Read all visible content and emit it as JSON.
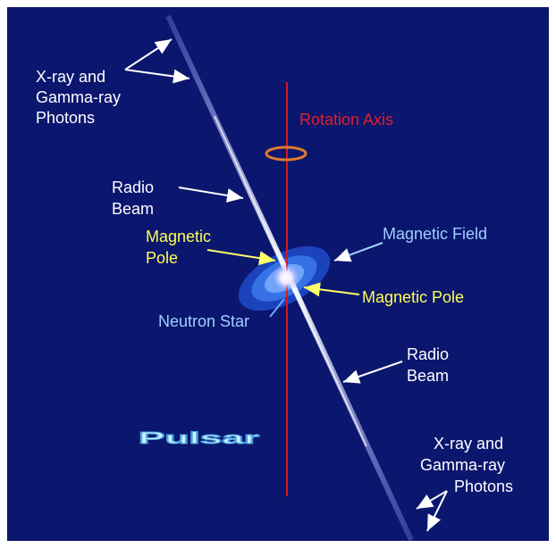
{
  "title": "Pulsar",
  "labels": [
    {
      "name": "photons-top",
      "lines": [
        "X-ray and",
        "Gamma-ray",
        "Photons"
      ]
    },
    {
      "name": "rotation-axis",
      "lines": [
        "Rotation Axis"
      ]
    },
    {
      "name": "radio-beam-top",
      "lines": [
        "Radio",
        "Beam"
      ]
    },
    {
      "name": "magnetic-pole-left",
      "lines": [
        "Magnetic",
        "Pole"
      ]
    },
    {
      "name": "magnetic-field",
      "lines": [
        "Magnetic Field"
      ]
    },
    {
      "name": "magnetic-pole-right",
      "lines": [
        "Magnetic Pole"
      ]
    },
    {
      "name": "neutron-star",
      "lines": [
        "Neutron Star"
      ]
    },
    {
      "name": "radio-beam-bottom",
      "lines": [
        "Radio",
        "Beam"
      ]
    },
    {
      "name": "photons-bottom",
      "lines": [
        "X-ray and",
        "Gamma-ray",
        "Photons"
      ]
    }
  ]
}
